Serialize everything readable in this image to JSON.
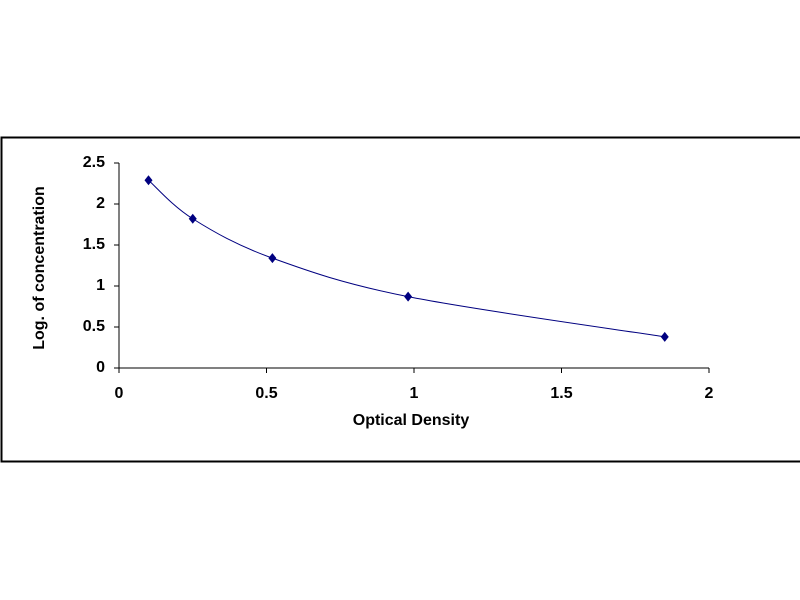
{
  "chart_data": {
    "type": "scatter",
    "xlabel": "Optical Density",
    "ylabel": "Log. of concentration",
    "series": [
      {
        "color": "#000080",
        "x": [
          0.1,
          0.25,
          0.52,
          0.98,
          1.85
        ],
        "values": [
          2.29,
          1.82,
          1.34,
          0.87,
          0.38
        ]
      }
    ],
    "smooth_line": true,
    "xlim": [
      0,
      2
    ],
    "xticks": [
      0,
      0.5,
      1,
      1.5,
      2
    ],
    "ylim": [
      0,
      2.5
    ],
    "yticks": [
      0,
      0.5,
      1,
      1.5,
      2,
      2.5
    ]
  }
}
